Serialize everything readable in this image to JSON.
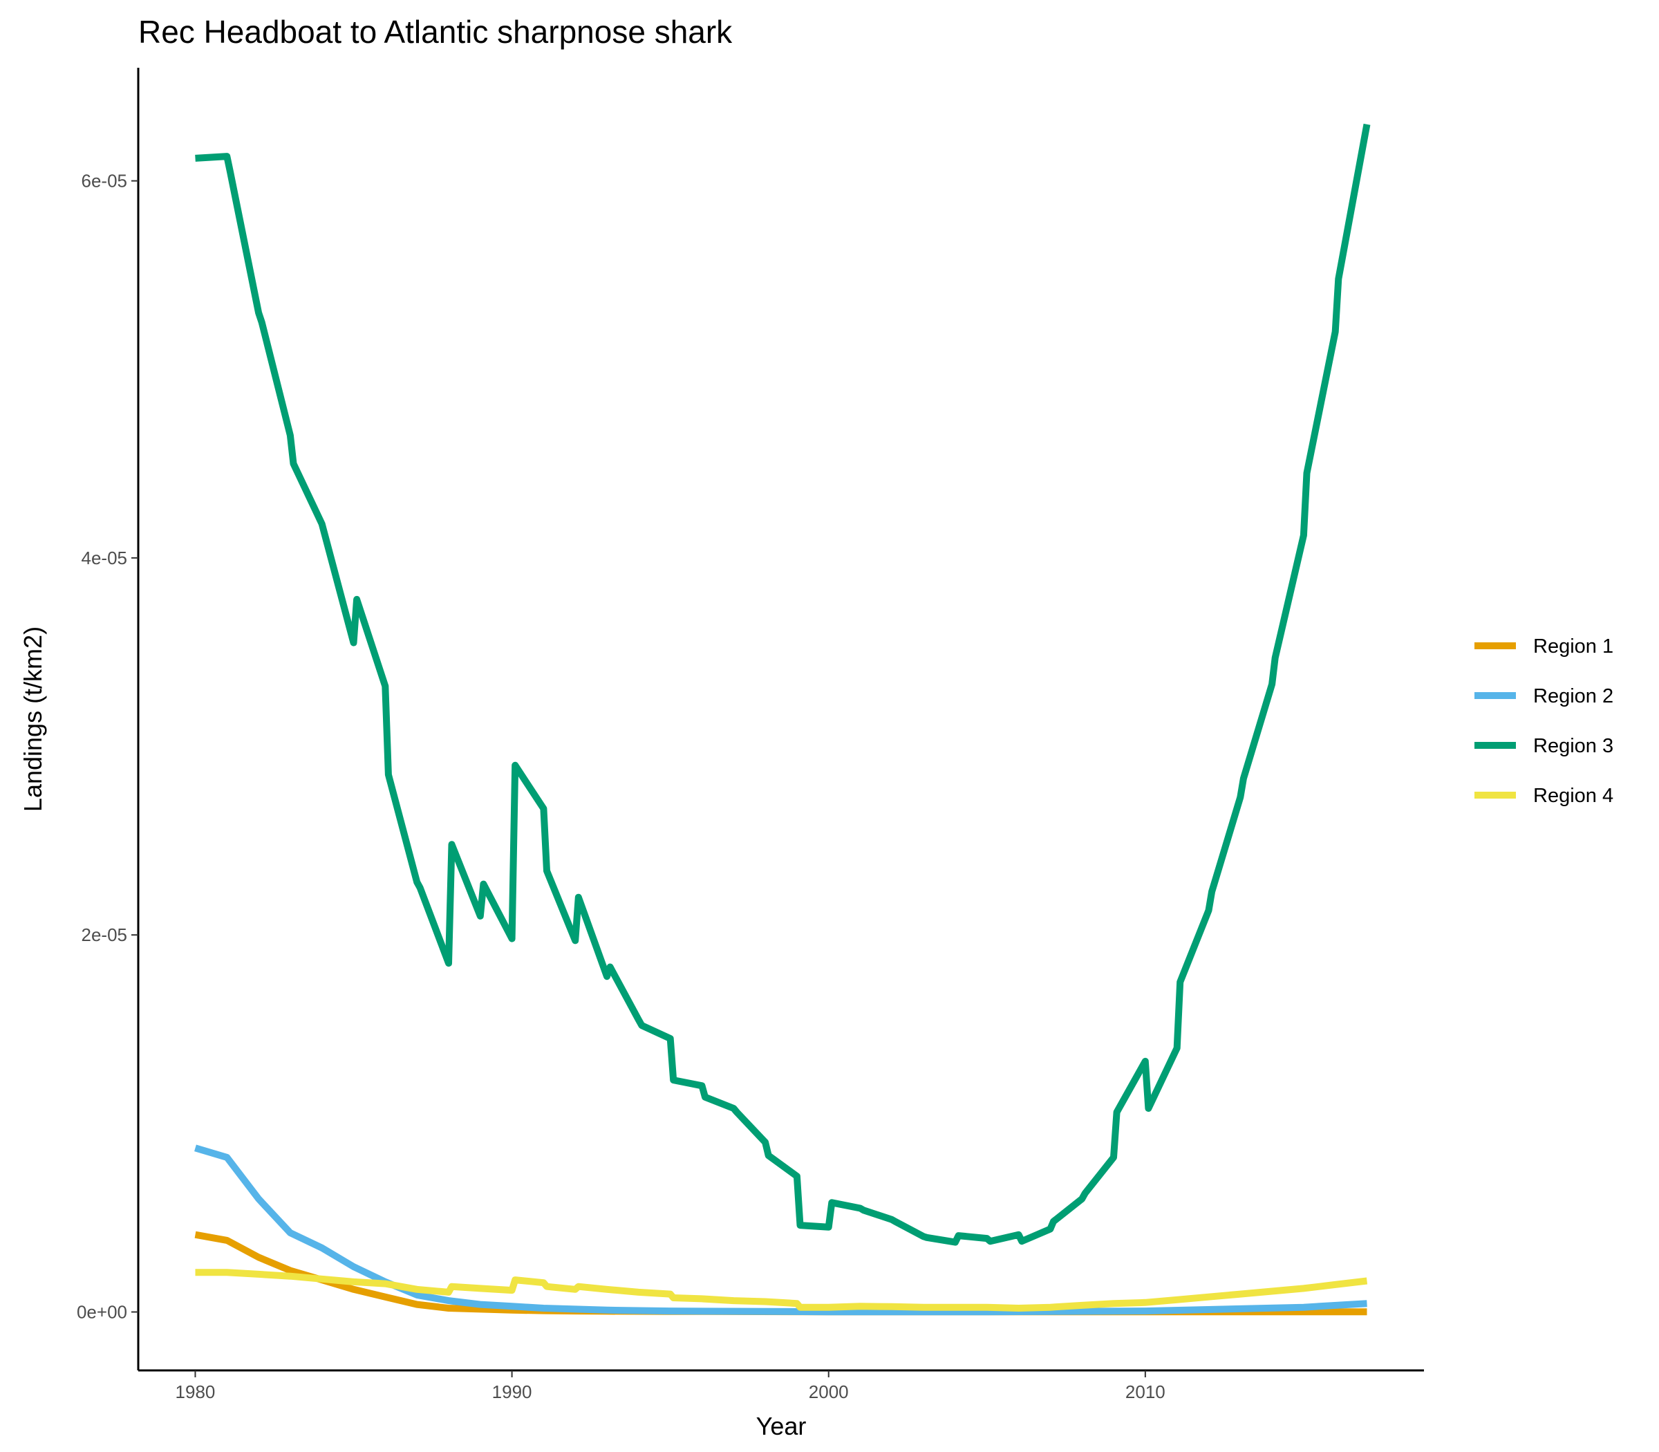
{
  "chart_data": {
    "type": "line",
    "title": "Rec Headboat to Atlantic sharpnose shark",
    "xlabel": "Year",
    "ylabel": "Landings (t/km2)",
    "xlim": [
      1978.2,
      2018.8
    ],
    "ylim": [
      -3.1e-06,
      6.6e-05
    ],
    "x_ticks": [
      1980,
      1990,
      2000,
      2010
    ],
    "y_ticks": [
      0,
      2e-05,
      4e-05,
      6e-05
    ],
    "y_tick_labels": [
      "0e+00",
      "2e-05",
      "4e-05",
      "6e-05"
    ],
    "grid": false,
    "legend_position": "right",
    "series": [
      {
        "name": "Region 1",
        "color": "#E69F00",
        "x": [
          1980,
          1981,
          1982,
          1983,
          1984,
          1985,
          1986,
          1987,
          1988,
          1989,
          1990,
          1991,
          1992,
          1993,
          1995,
          2000,
          2005,
          2010,
          2015,
          2017
        ],
        "y": [
          4.1e-06,
          3.8e-06,
          2.9e-06,
          2.2e-06,
          1.7e-06,
          1.2e-06,
          8e-07,
          4e-07,
          2e-07,
          1.5e-07,
          1e-07,
          7e-08,
          5e-08,
          4e-08,
          3e-08,
          1e-08,
          5e-09,
          5e-09,
          5e-09,
          5e-09
        ]
      },
      {
        "name": "Region 2",
        "color": "#56B4E9",
        "x": [
          1980,
          1981,
          1982,
          1983,
          1984,
          1985,
          1986,
          1987,
          1988,
          1989,
          1990,
          1991,
          1992,
          1993,
          1995,
          2000,
          2005,
          2010,
          2015,
          2017
        ],
        "y": [
          8.7e-06,
          8.2e-06,
          6e-06,
          4.2e-06,
          3.4e-06,
          2.4e-06,
          1.6e-06,
          9e-07,
          6e-07,
          4e-07,
          3e-07,
          2e-07,
          1.5e-07,
          1e-07,
          5e-08,
          1e-08,
          1e-08,
          5e-08,
          2.5e-07,
          4.5e-07
        ]
      },
      {
        "name": "Region 3",
        "color": "#009E73",
        "x": [
          1980,
          1981,
          1981.1,
          1982,
          1982.1,
          1983,
          1983.1,
          1984,
          1985,
          1985.1,
          1986,
          1986.1,
          1987,
          1987.1,
          1988,
          1988.1,
          1989,
          1989.1,
          1990,
          1990.1,
          1991,
          1991.1,
          1992,
          1992.1,
          1993,
          1993.1,
          1994,
          1994.1,
          1995,
          1995.1,
          1996,
          1996.1,
          1997,
          1997.1,
          1998,
          1998.1,
          1999,
          1999.1,
          2000,
          2000.1,
          2001,
          2001.1,
          2002,
          2002.1,
          2003,
          2003.1,
          2004,
          2004.1,
          2005,
          2005.1,
          2006,
          2006.1,
          2007,
          2007.1,
          2008,
          2008.1,
          2009,
          2009.1,
          2010,
          2010.1,
          2011,
          2011.1,
          2012,
          2012.1,
          2013,
          2013.1,
          2014,
          2014.1,
          2015,
          2015.1,
          2016,
          2016.1,
          2017
        ],
        "y": [
          6.12e-05,
          6.13e-05,
          6.05e-05,
          5.3e-05,
          5.25e-05,
          4.65e-05,
          4.5e-05,
          4.18e-05,
          3.55e-05,
          3.78e-05,
          3.32e-05,
          2.85e-05,
          2.28e-05,
          2.25e-05,
          1.85e-05,
          2.48e-05,
          2.1e-05,
          2.27e-05,
          1.98e-05,
          2.9e-05,
          2.67e-05,
          2.34e-05,
          1.97e-05,
          2.2e-05,
          1.78e-05,
          1.83e-05,
          1.55e-05,
          1.52e-05,
          1.45e-05,
          1.23e-05,
          1.2e-05,
          1.14e-05,
          1.08e-05,
          1.06e-05,
          9e-06,
          8.3e-06,
          7.2e-06,
          4.6e-06,
          4.5e-06,
          5.8e-06,
          5.5e-06,
          5.4e-06,
          4.9e-06,
          4.8e-06,
          4e-06,
          3.95e-06,
          3.7e-06,
          4.05e-06,
          3.9e-06,
          3.75e-06,
          4.1e-06,
          3.75e-06,
          4.4e-06,
          4.8e-06,
          6e-06,
          6.3e-06,
          8.2e-06,
          1.06e-05,
          1.33e-05,
          1.08e-05,
          1.4e-05,
          1.75e-05,
          2.13e-05,
          2.23e-05,
          2.73e-05,
          2.83e-05,
          3.33e-05,
          3.47e-05,
          4.12e-05,
          4.45e-05,
          5.2e-05,
          5.48e-05,
          6.3e-05
        ]
      },
      {
        "name": "Region 4",
        "color": "#F0E442",
        "x": [
          1980,
          1981,
          1982,
          1983,
          1984,
          1985,
          1986,
          1987,
          1988,
          1988.1,
          1989,
          1990,
          1990.1,
          1991,
          1991.1,
          1992,
          1992.1,
          1993,
          1994,
          1995,
          1995.1,
          1996,
          1997,
          1998,
          1999,
          1999.1,
          2000,
          2001,
          2002,
          2003,
          2004,
          2005,
          2006,
          2007,
          2008,
          2009,
          2010,
          2011,
          2012,
          2013,
          2014,
          2015,
          2016,
          2017
        ],
        "y": [
          2.1e-06,
          2.1e-06,
          2e-06,
          1.9e-06,
          1.75e-06,
          1.6e-06,
          1.5e-06,
          1.2e-06,
          1.05e-06,
          1.35e-06,
          1.25e-06,
          1.15e-06,
          1.7e-06,
          1.55e-06,
          1.35e-06,
          1.2e-06,
          1.35e-06,
          1.2e-06,
          1.05e-06,
          9.5e-07,
          7.5e-07,
          7e-07,
          6e-07,
          5.5e-07,
          4.5e-07,
          2.5e-07,
          2.5e-07,
          3e-07,
          2.8e-07,
          2.5e-07,
          2.5e-07,
          2.5e-07,
          2e-07,
          2.5e-07,
          3.5e-07,
          4.5e-07,
          5e-07,
          6.5e-07,
          8e-07,
          9.5e-07,
          1.1e-06,
          1.25e-06,
          1.45e-06,
          1.65e-06
        ]
      }
    ]
  }
}
